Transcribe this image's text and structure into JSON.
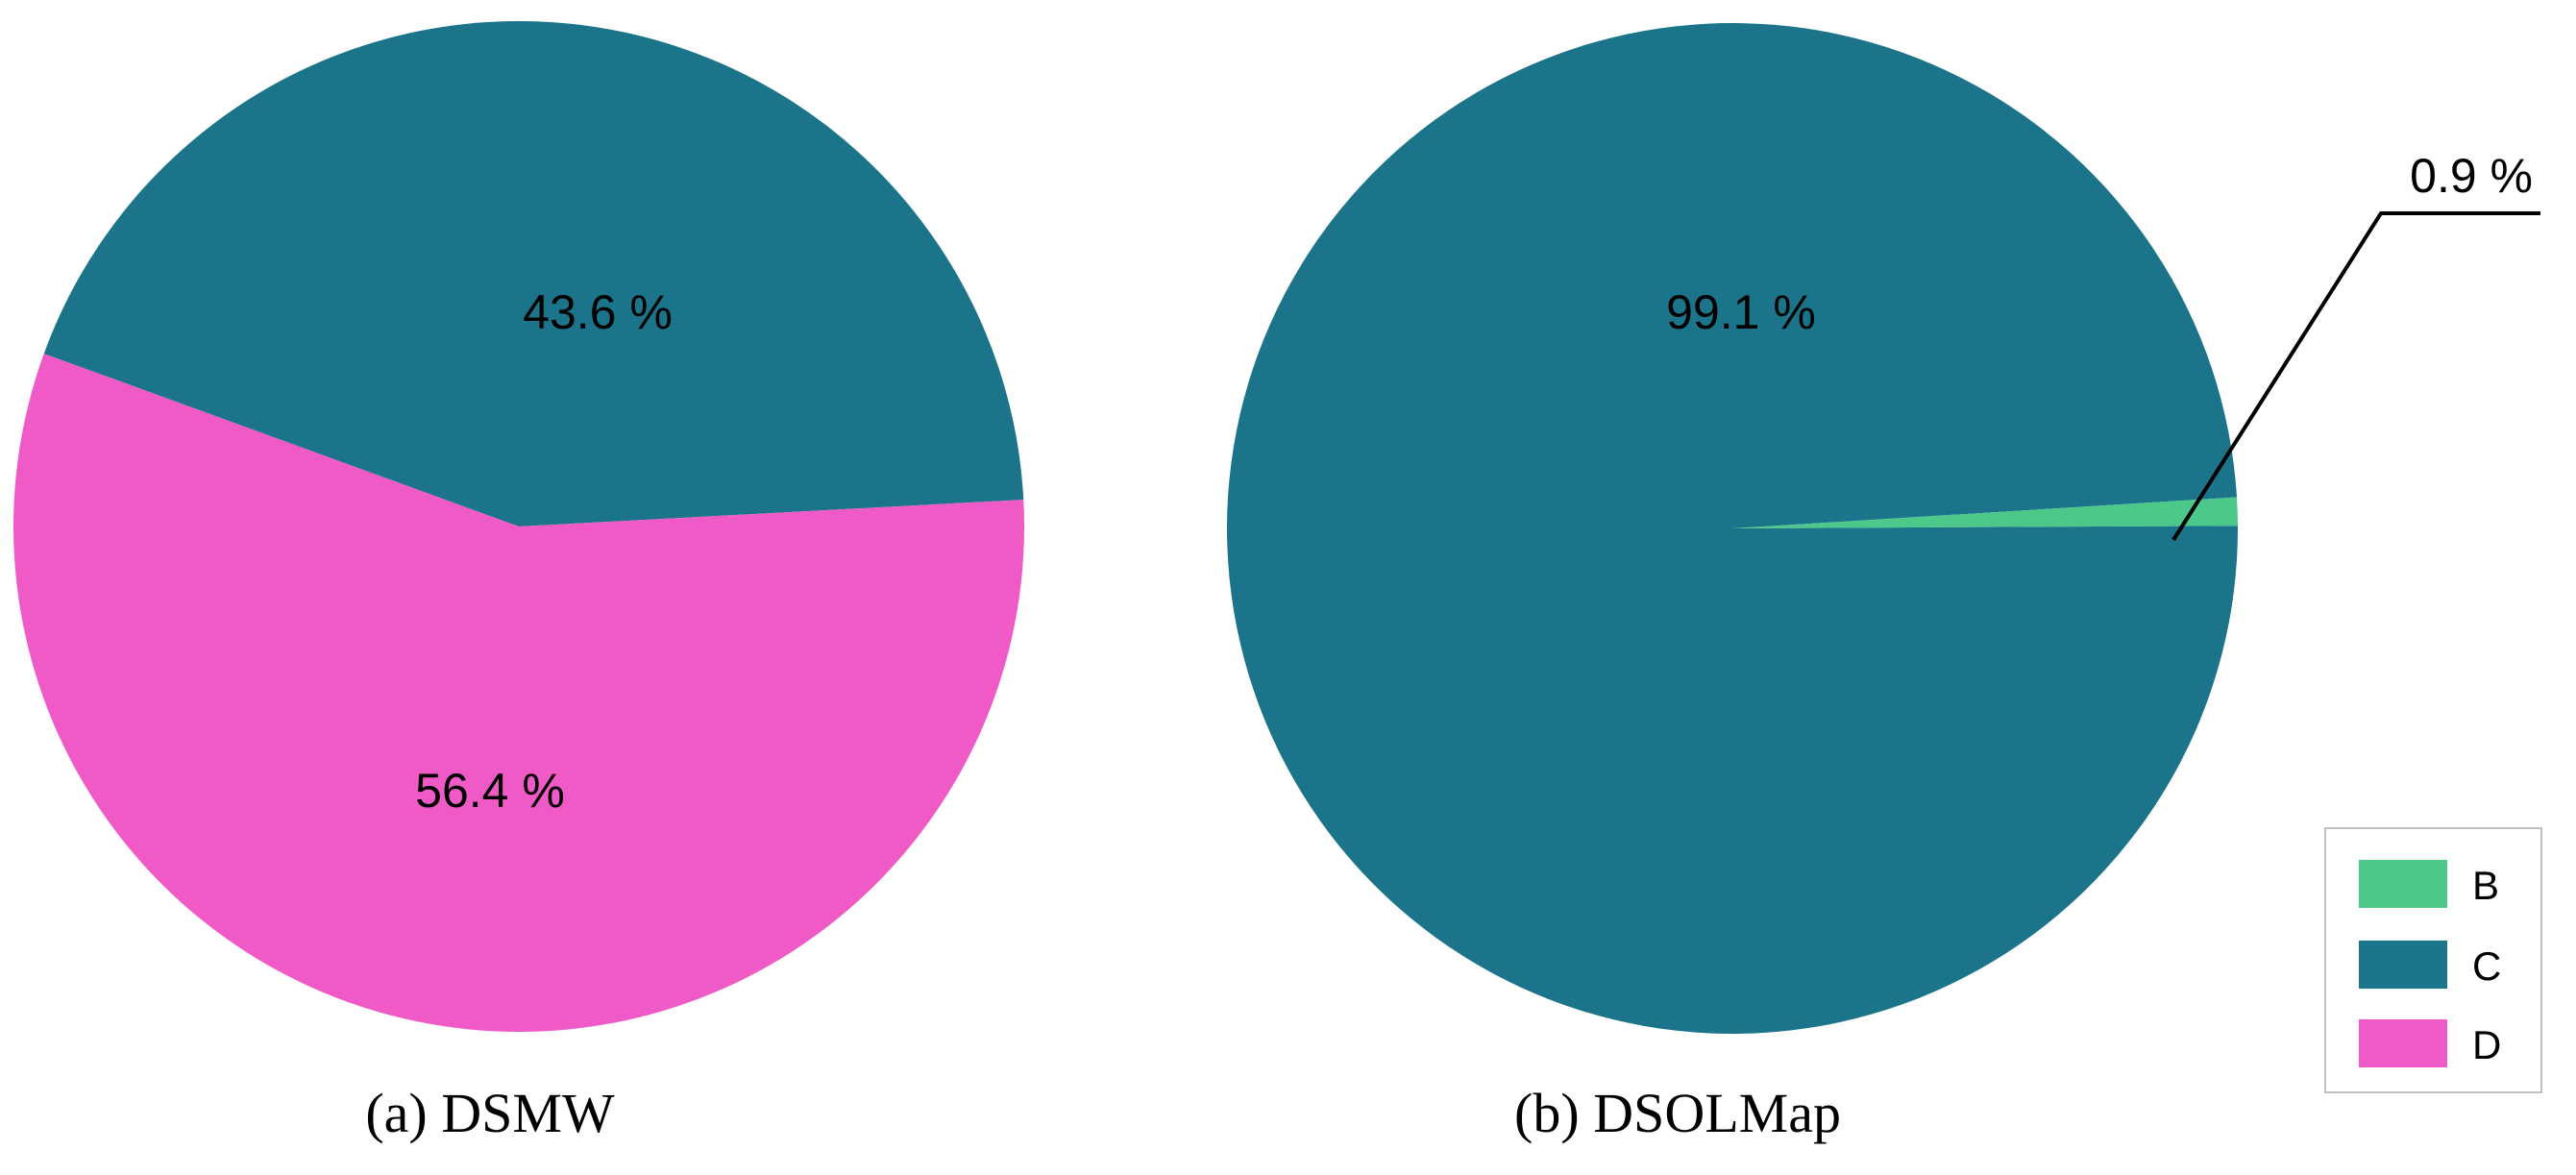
{
  "colors": {
    "B": "#4cc88a",
    "C": "#1b7489",
    "D": "#f05ac6"
  },
  "chart_data": [
    {
      "type": "pie",
      "title": "(a) DSMW",
      "slices": [
        {
          "category": "C",
          "value": 43.6,
          "label": "43.6 %"
        },
        {
          "category": "D",
          "value": 56.4,
          "label": "56.4 %"
        }
      ]
    },
    {
      "type": "pie",
      "title": "(b) DSOLMap",
      "slices": [
        {
          "category": "C",
          "value": 99.1,
          "label": "99.1 %"
        },
        {
          "category": "B",
          "value": 0.9,
          "label": "0.9 %"
        }
      ]
    }
  ],
  "legend": {
    "placement": "bottom-right",
    "entries": [
      {
        "category": "B",
        "label": "B"
      },
      {
        "category": "C",
        "label": "C"
      },
      {
        "category": "D",
        "label": "D"
      }
    ]
  }
}
